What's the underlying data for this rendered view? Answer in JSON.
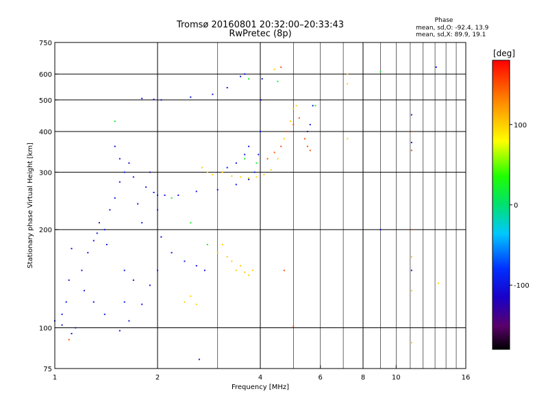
{
  "chart_data": {
    "type": "scatter",
    "title_line1": "Tromsø 20160801 20:32:00–20:33:43",
    "title_line2": "RwPretec (8p)",
    "xlabel": "Frequency [MHz]",
    "ylabel": "Stationary phase Virtual Height [km]",
    "x_scale": "log",
    "y_scale": "log",
    "xlim": [
      1,
      16
    ],
    "ylim": [
      75,
      750
    ],
    "x_ticks": [
      1,
      2,
      4,
      6,
      8,
      10,
      16
    ],
    "x_tick_labels": [
      "1",
      "2",
      "4",
      "6",
      "8",
      "10",
      "16"
    ],
    "y_ticks": [
      75,
      100,
      200,
      300,
      400,
      500,
      600,
      750
    ],
    "y_tick_labels": [
      "75",
      "100",
      "200",
      "300",
      "400",
      "500",
      "600",
      "750"
    ],
    "x_major_grid": [
      2,
      4,
      8
    ],
    "x_minor_grid": [
      3,
      5,
      6,
      7,
      9,
      10,
      11,
      12,
      13,
      14,
      15
    ],
    "y_grid": [
      100,
      200,
      300,
      400,
      500,
      600
    ],
    "grid": true,
    "phase_stats": {
      "title": "Phase",
      "line1": "mean, sd,O:  -92.4, 13.9",
      "line2": "mean, sd,X:  89.9, 19.1"
    },
    "colorbar": {
      "label": "[deg]",
      "min": -180,
      "max": 180,
      "ticks": [
        100,
        0,
        -100
      ],
      "tick_labels": [
        "100",
        "0",
        "-100"
      ],
      "colormap": "rainbow"
    },
    "series": [
      {
        "phase": -100,
        "points": [
          [
            1.0,
            105
          ],
          [
            1.05,
            110
          ],
          [
            1.08,
            120
          ],
          [
            1.1,
            140
          ],
          [
            1.12,
            175
          ],
          [
            1.15,
            100
          ],
          [
            1.2,
            150
          ],
          [
            1.22,
            130
          ],
          [
            1.25,
            170
          ],
          [
            1.3,
            185
          ],
          [
            1.33,
            195
          ],
          [
            1.35,
            210
          ],
          [
            1.4,
            200
          ],
          [
            1.42,
            180
          ],
          [
            1.45,
            230
          ],
          [
            1.5,
            250
          ],
          [
            1.55,
            280
          ],
          [
            1.6,
            300
          ],
          [
            1.65,
            320
          ],
          [
            1.7,
            290
          ],
          [
            1.75,
            240
          ],
          [
            1.8,
            210
          ],
          [
            1.85,
            270
          ],
          [
            1.9,
            300
          ],
          [
            1.95,
            260
          ],
          [
            2.0,
            255
          ],
          [
            2.1,
            255
          ],
          [
            2.3,
            255
          ],
          [
            2.6,
            262
          ],
          [
            3.0,
            265
          ],
          [
            3.4,
            275
          ],
          [
            3.7,
            285
          ],
          [
            3.85,
            300
          ],
          [
            3.95,
            340
          ],
          [
            4.0,
            400
          ],
          [
            4.02,
            500
          ],
          [
            4.05,
            580
          ],
          [
            1.8,
            505
          ],
          [
            1.95,
            502
          ],
          [
            2.05,
            500
          ],
          [
            2.5,
            510
          ],
          [
            2.9,
            520
          ],
          [
            3.2,
            545
          ],
          [
            3.5,
            590
          ],
          [
            3.6,
            600
          ],
          [
            1.5,
            360
          ],
          [
            1.55,
            330
          ],
          [
            1.6,
            150
          ],
          [
            1.7,
            140
          ],
          [
            1.9,
            135
          ],
          [
            2.0,
            150
          ],
          [
            2.2,
            170
          ],
          [
            2.4,
            160
          ],
          [
            2.6,
            155
          ],
          [
            2.75,
            150
          ],
          [
            1.3,
            120
          ],
          [
            1.4,
            110
          ],
          [
            1.6,
            120
          ],
          [
            1.8,
            118
          ],
          [
            1.65,
            105
          ],
          [
            3.2,
            310
          ],
          [
            3.4,
            320
          ],
          [
            3.6,
            340
          ],
          [
            3.7,
            360
          ],
          [
            5.5,
            400
          ],
          [
            5.6,
            420
          ],
          [
            5.7,
            480
          ],
          [
            9.0,
            200
          ],
          [
            11.1,
            150
          ],
          [
            11.1,
            450
          ],
          [
            11.1,
            370
          ],
          [
            13.1,
            630
          ],
          [
            2.65,
            80
          ],
          [
            1.05,
            102
          ],
          [
            1.12,
            96
          ],
          [
            1.55,
            98
          ],
          [
            2.0,
            230
          ],
          [
            2.05,
            190
          ]
        ]
      },
      {
        "phase": 100,
        "points": [
          [
            2.9,
            295
          ],
          [
            3.1,
            300
          ],
          [
            3.3,
            292
          ],
          [
            3.5,
            290
          ],
          [
            3.7,
            288
          ],
          [
            3.9,
            290
          ],
          [
            4.1,
            295
          ],
          [
            4.3,
            305
          ],
          [
            4.5,
            330
          ],
          [
            4.7,
            380
          ],
          [
            4.9,
            430
          ],
          [
            5.0,
            470
          ],
          [
            5.1,
            480
          ],
          [
            2.7,
            310
          ],
          [
            2.8,
            300
          ],
          [
            3.0,
            170
          ],
          [
            3.1,
            180
          ],
          [
            3.2,
            165
          ],
          [
            3.3,
            160
          ],
          [
            3.4,
            150
          ],
          [
            3.5,
            155
          ],
          [
            3.6,
            148
          ],
          [
            3.7,
            145
          ],
          [
            3.8,
            150
          ],
          [
            2.4,
            120
          ],
          [
            2.5,
            125
          ],
          [
            2.6,
            118
          ],
          [
            7.2,
            600
          ],
          [
            7.2,
            560
          ],
          [
            7.2,
            380
          ],
          [
            11.1,
            165
          ],
          [
            11.1,
            130
          ],
          [
            11.1,
            90
          ],
          [
            13.3,
            137
          ],
          [
            4.4,
            620
          ]
        ]
      },
      {
        "phase": 150,
        "points": [
          [
            4.2,
            330
          ],
          [
            4.4,
            345
          ],
          [
            4.6,
            360
          ],
          [
            4.8,
            400
          ],
          [
            5.0,
            420
          ],
          [
            5.2,
            440
          ],
          [
            5.4,
            380
          ],
          [
            5.5,
            360
          ],
          [
            5.6,
            350
          ],
          [
            4.7,
            150
          ],
          [
            5.0,
            101
          ],
          [
            11.1,
            200
          ],
          [
            11.1,
            400
          ],
          [
            11.1,
            350
          ],
          [
            1.1,
            92
          ],
          [
            4.6,
            630
          ]
        ]
      },
      {
        "phase": 20,
        "points": [
          [
            1.5,
            430
          ],
          [
            2.2,
            250
          ],
          [
            2.5,
            210
          ],
          [
            2.8,
            180
          ],
          [
            3.6,
            330
          ],
          [
            3.9,
            320
          ],
          [
            4.5,
            570
          ],
          [
            5.8,
            480
          ],
          [
            9.0,
            610
          ],
          [
            3.7,
            580
          ]
        ]
      }
    ]
  }
}
